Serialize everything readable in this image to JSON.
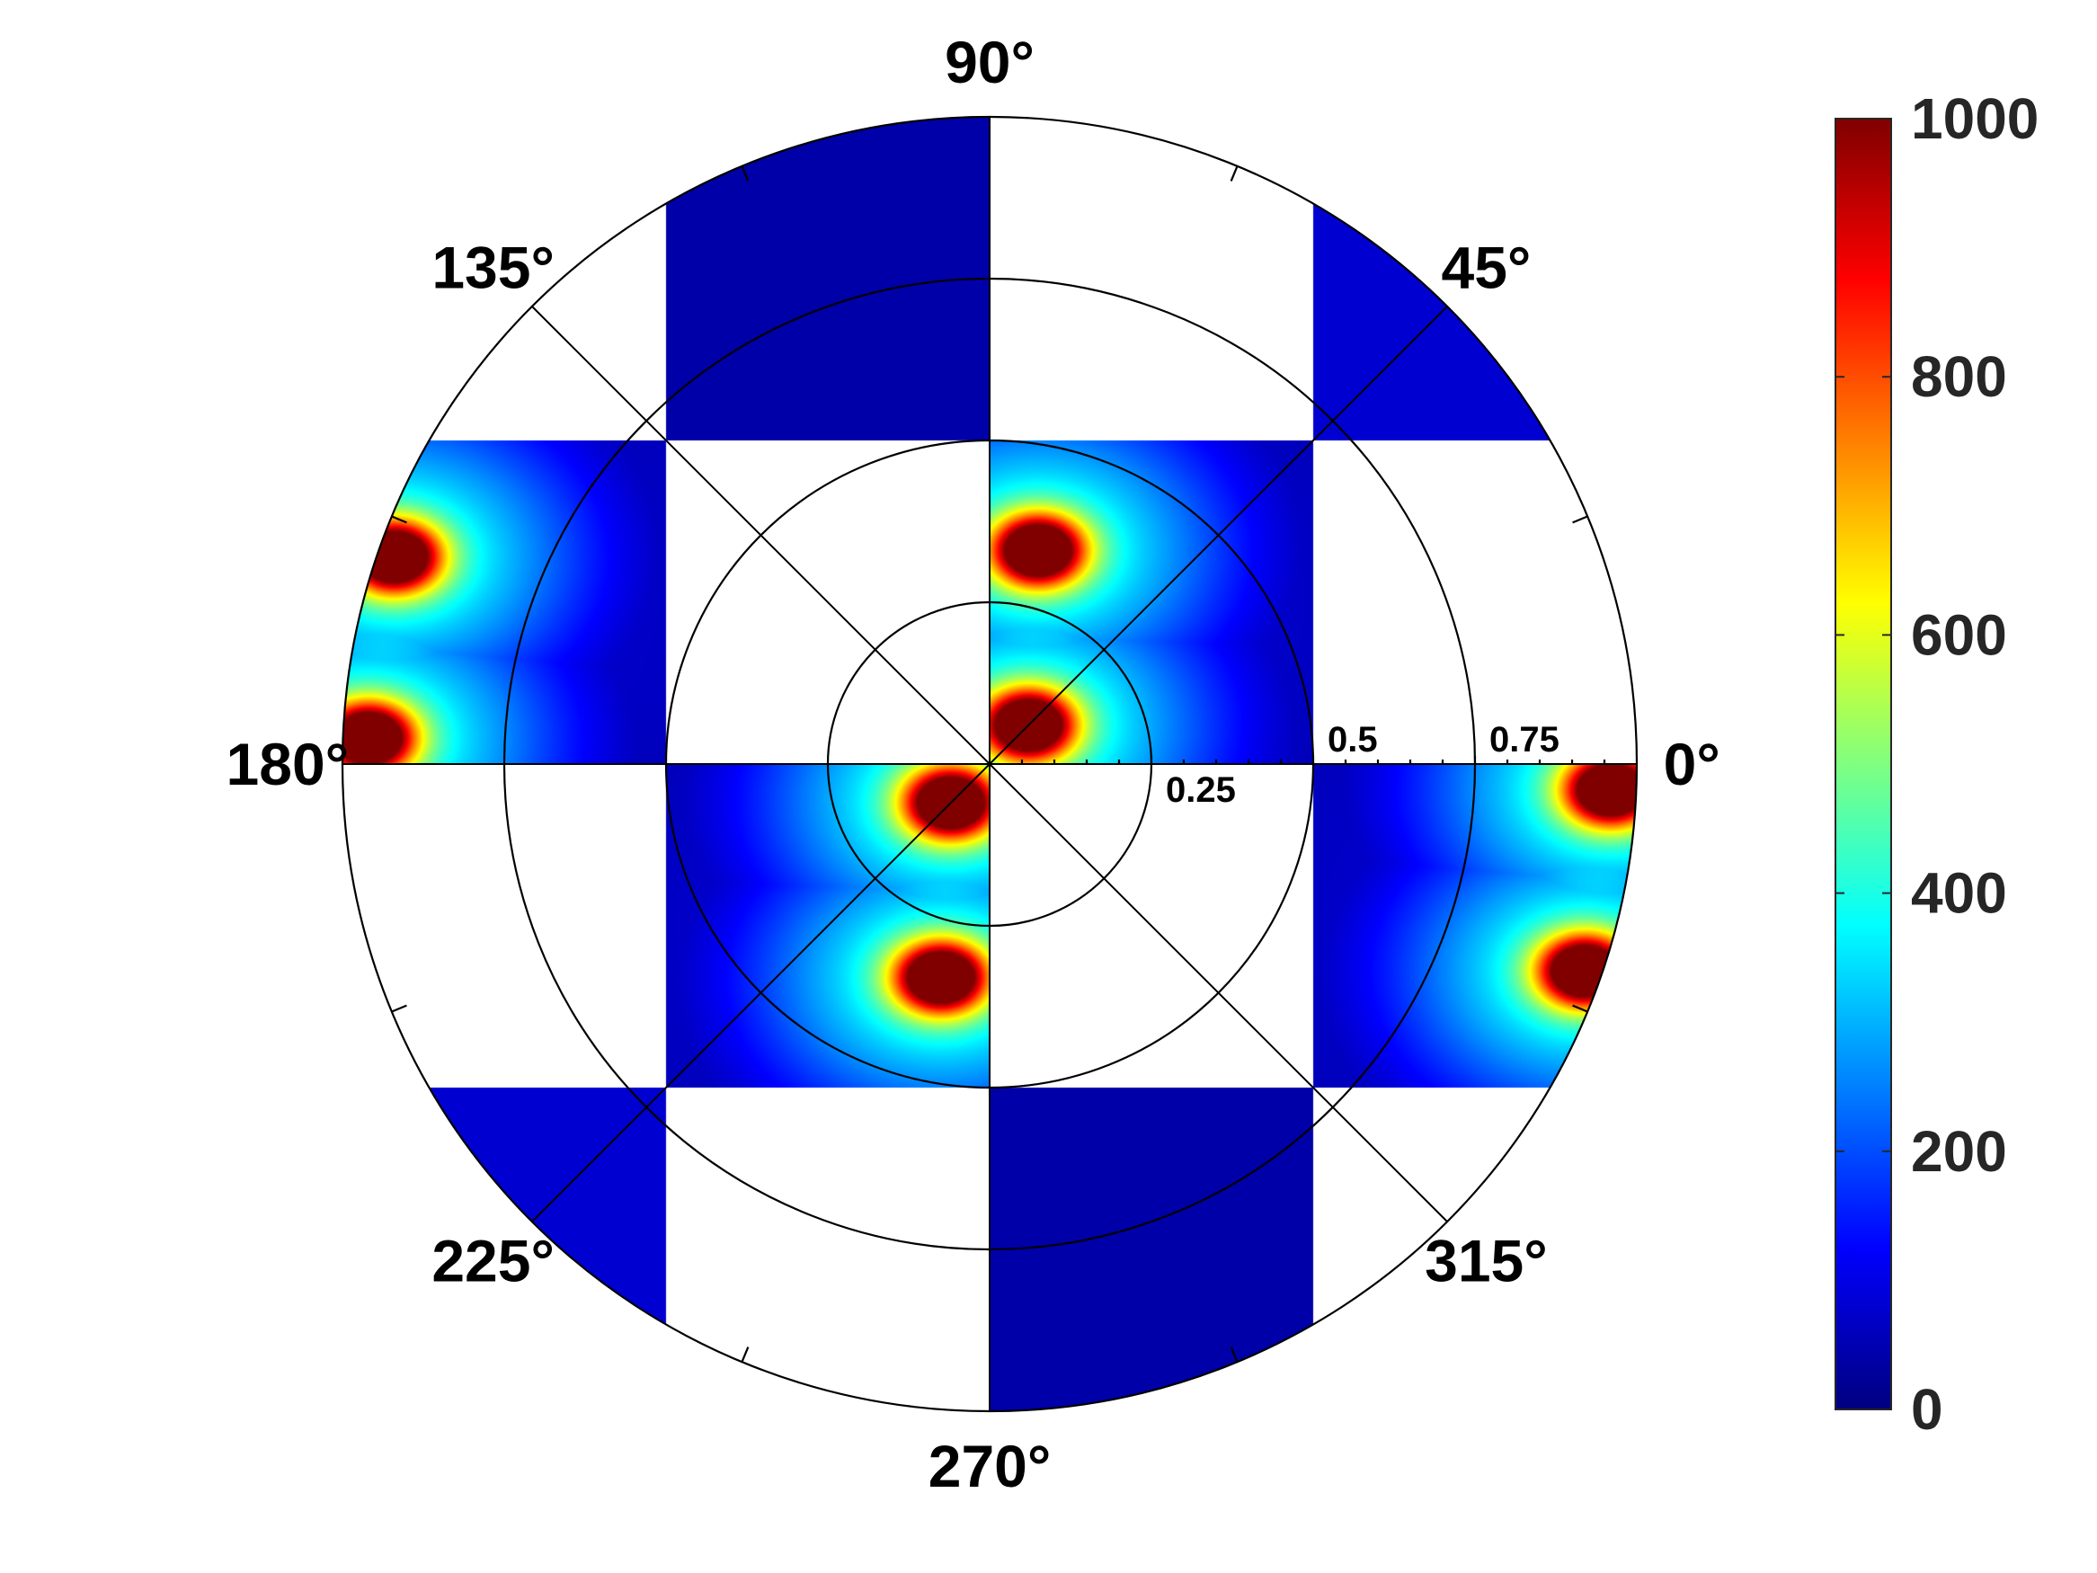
{
  "chart_data": {
    "type": "heatmap",
    "subtype": "polar",
    "title": "",
    "angular_axis": {
      "unit": "degrees",
      "tick_labels": [
        {
          "angle": 0,
          "label": "0°"
        },
        {
          "angle": 45,
          "label": "45°"
        },
        {
          "angle": 90,
          "label": "90°"
        },
        {
          "angle": 135,
          "label": "135°"
        },
        {
          "angle": 180,
          "label": "180°"
        },
        {
          "angle": 225,
          "label": "225°"
        },
        {
          "angle": 270,
          "label": "270°"
        },
        {
          "angle": 315,
          "label": "315°"
        }
      ],
      "minor_ticks_deg": [
        22.5,
        67.5,
        112.5,
        157.5,
        202.5,
        247.5,
        292.5,
        337.5
      ]
    },
    "radial_axis": {
      "range": [
        0,
        1
      ],
      "grid_rings": [
        0.25,
        0.5,
        0.75,
        1.0
      ],
      "tick_labels": [
        {
          "value": 0.25,
          "label": "0.25"
        },
        {
          "value": 0.5,
          "label": "0.5"
        },
        {
          "value": 0.75,
          "label": "0.75"
        }
      ]
    },
    "colorbar": {
      "colormap": "jet",
      "range": [
        0,
        1000
      ],
      "tick_labels": [
        {
          "value": 0,
          "label": "0"
        },
        {
          "value": 200,
          "label": "200"
        },
        {
          "value": 400,
          "label": "400"
        },
        {
          "value": 600,
          "label": "600"
        },
        {
          "value": 800,
          "label": "800"
        },
        {
          "value": 1000,
          "label": "1000"
        }
      ]
    },
    "filled_tiles": [
      {
        "id": "inner-q1",
        "x_range": [
          0,
          0.5
        ],
        "y_range": [
          0,
          0.5
        ],
        "pattern": "hotspots",
        "hotspots": [
          {
            "x": 0.075,
            "y": 0.33,
            "value": 1000
          },
          {
            "x": 0.06,
            "y": 0.06,
            "value": 1000
          }
        ]
      },
      {
        "id": "inner-q3",
        "x_range": [
          -0.5,
          0
        ],
        "y_range": [
          -0.5,
          0
        ],
        "pattern": "hotspots",
        "hotspots": [
          {
            "x": -0.075,
            "y": -0.33,
            "value": 1000
          },
          {
            "x": -0.06,
            "y": -0.06,
            "value": 1000
          }
        ]
      },
      {
        "id": "outer-right",
        "x_range": [
          0.5,
          1
        ],
        "y_range": [
          -0.5,
          0
        ],
        "pattern": "hotspots",
        "hotspots": [
          {
            "x": 0.96,
            "y": -0.04,
            "value": 1000
          },
          {
            "x": 0.92,
            "y": -0.32,
            "value": 1000
          }
        ]
      },
      {
        "id": "outer-left",
        "x_range": [
          -1,
          -0.5
        ],
        "y_range": [
          0,
          0.5
        ],
        "pattern": "hotspots",
        "hotspots": [
          {
            "x": -0.96,
            "y": 0.04,
            "value": 1000
          },
          {
            "x": -0.92,
            "y": 0.32,
            "value": 1000
          }
        ]
      },
      {
        "id": "outer-top",
        "x_range": [
          -0.5,
          0
        ],
        "y_range": [
          0.5,
          1
        ],
        "pattern": "low",
        "level": 40
      },
      {
        "id": "outer-bottom",
        "x_range": [
          0,
          0.5
        ],
        "y_range": [
          -1,
          -0.5
        ],
        "pattern": "low",
        "level": 40
      },
      {
        "id": "corner-ne",
        "x_range": [
          0.5,
          1
        ],
        "y_range": [
          0.5,
          1
        ],
        "pattern": "low",
        "level": 80
      },
      {
        "id": "corner-sw",
        "x_range": [
          -1,
          -0.5
        ],
        "y_range": [
          -1,
          -0.5
        ],
        "pattern": "low",
        "level": 80
      }
    ]
  },
  "colors": {
    "jet_stops": [
      "#00007f",
      "#0000ff",
      "#007fff",
      "#00ffff",
      "#7fff7f",
      "#ffff00",
      "#ff7f00",
      "#ff0000",
      "#7f0000"
    ]
  }
}
